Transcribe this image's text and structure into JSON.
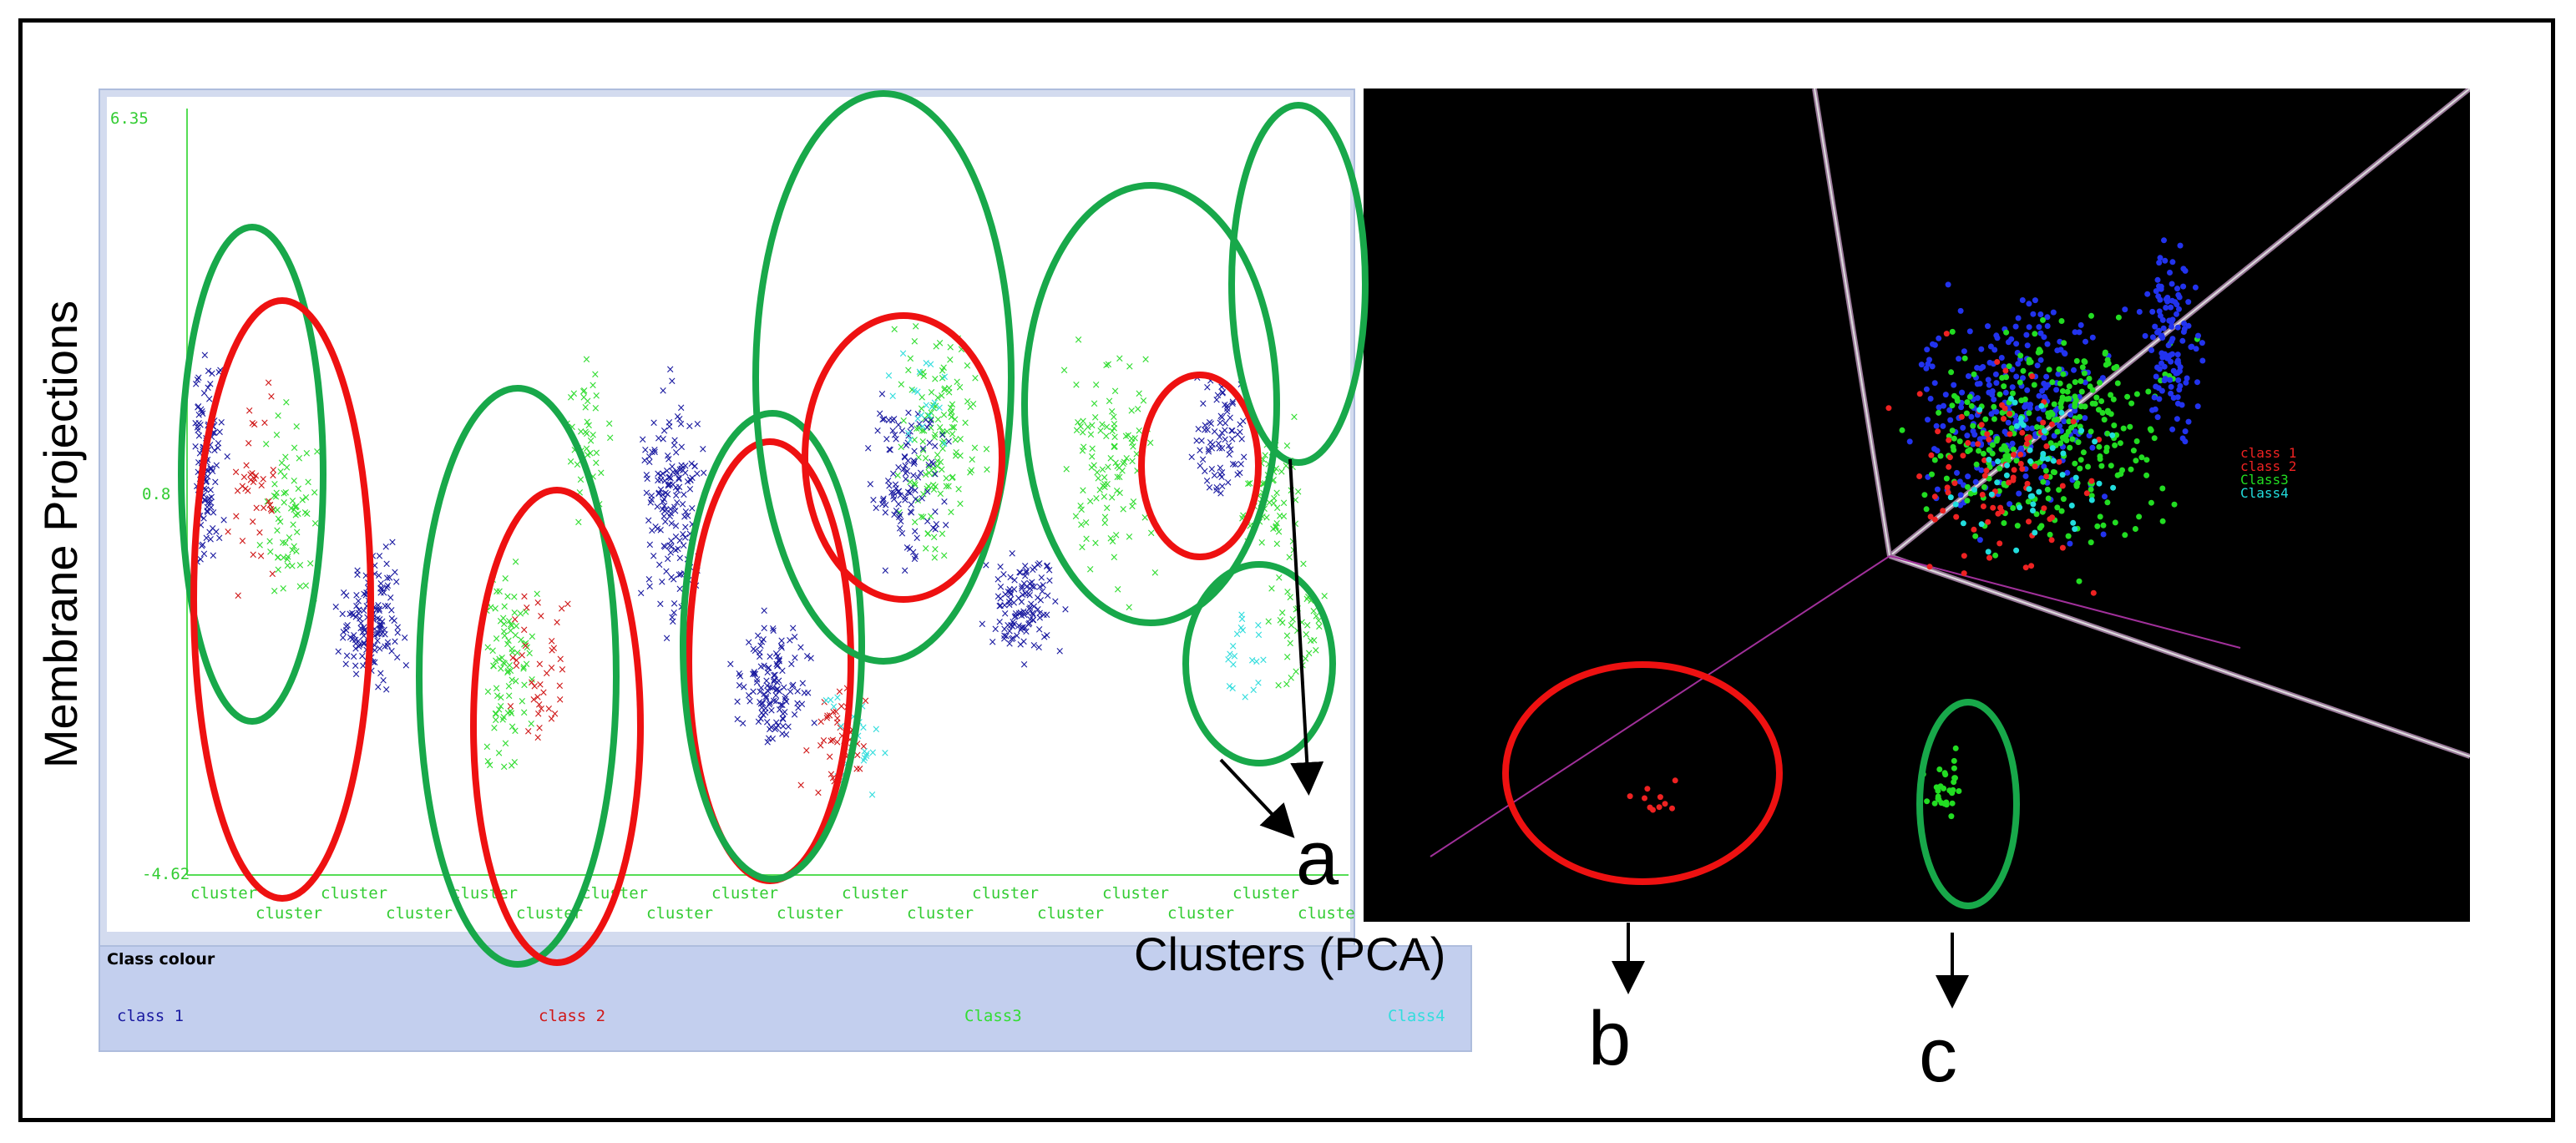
{
  "chart_data": [
    {
      "type": "scatter",
      "title": "",
      "xlabel": "Clusters (PCA)",
      "ylabel": "Membrane Projections",
      "y_ticks": [
        "6.35",
        "0.8",
        "-4.62"
      ],
      "ylim": [
        -4.62,
        6.35
      ],
      "x_tick_label": "cluster",
      "x_tick_count": 18,
      "legend_title": "Class colour",
      "legend_placement": "bottom",
      "series": [
        {
          "name": "class 1",
          "color": "#1a1aa0"
        },
        {
          "name": "class 2",
          "color": "#d01818"
        },
        {
          "name": "Class3",
          "color": "#33dd33"
        },
        {
          "name": "Class4",
          "color": "#33dddd"
        }
      ],
      "annotation": "a"
    },
    {
      "type": "scatter",
      "title": "",
      "view": "3d",
      "legend_placement": "right",
      "series": [
        {
          "name": "class 1",
          "color": "#2233ee"
        },
        {
          "name": "class 2",
          "color": "#ee2222"
        },
        {
          "name": "Class3",
          "color": "#22dd22"
        },
        {
          "name": "Class4",
          "color": "#22dddd"
        }
      ],
      "annotations": [
        "b",
        "c"
      ]
    }
  ],
  "labels": {
    "a": "a",
    "b": "b",
    "c": "c",
    "xlabel": "Clusters (PCA)",
    "ylabel": "Membrane Projections",
    "class_colour": "Class colour",
    "class1": "class 1",
    "class2": "class 2",
    "class3": "Class3",
    "class4": "Class4",
    "ytick_top": "6.35",
    "ytick_mid": "0.8",
    "ytick_bot": "-4.62"
  },
  "colors": {
    "ellipse_green": "#18a84a",
    "ellipse_red": "#ee1111",
    "axis_green": "#55dd55"
  }
}
